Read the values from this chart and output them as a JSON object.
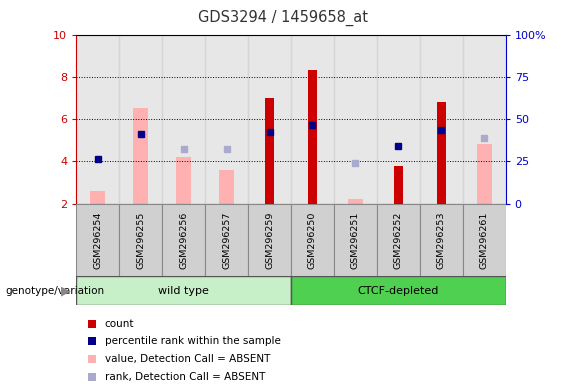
{
  "title": "GDS3294 / 1459658_at",
  "samples": [
    "GSM296254",
    "GSM296255",
    "GSM296256",
    "GSM296257",
    "GSM296259",
    "GSM296250",
    "GSM296251",
    "GSM296252",
    "GSM296253",
    "GSM296261"
  ],
  "groups": [
    "wild type",
    "wild type",
    "wild type",
    "wild type",
    "wild type",
    "CTCF-depleted",
    "CTCF-depleted",
    "CTCF-depleted",
    "CTCF-depleted",
    "CTCF-depleted"
  ],
  "count": [
    null,
    null,
    null,
    null,
    7.0,
    8.3,
    null,
    3.8,
    6.8,
    null
  ],
  "value_absent": [
    2.6,
    6.5,
    4.2,
    3.6,
    null,
    null,
    2.2,
    null,
    null,
    4.8
  ],
  "percentile_rank": [
    4.1,
    5.3,
    null,
    null,
    5.4,
    5.7,
    null,
    4.7,
    5.5,
    null
  ],
  "rank_absent": [
    null,
    null,
    4.6,
    4.6,
    null,
    null,
    3.9,
    null,
    null,
    5.1
  ],
  "ylim": [
    2,
    10
  ],
  "yticks": [
    2,
    4,
    6,
    8,
    10
  ],
  "right_yticks_vals": [
    0,
    25,
    50,
    75,
    100
  ],
  "right_ytick_labels": [
    "0",
    "25",
    "50",
    "75",
    "100%"
  ],
  "left_axis_color": "#cc0000",
  "right_axis_color": "#0000cc",
  "wt_color_light": "#c8f0c8",
  "wt_color": "#90e890",
  "ctcf_color": "#50d050",
  "col_bg_color": "#d0d0d0",
  "legend": [
    {
      "label": "count",
      "color": "#cc0000"
    },
    {
      "label": "percentile rank within the sample",
      "color": "#00008b"
    },
    {
      "label": "value, Detection Call = ABSENT",
      "color": "#ffb0b0"
    },
    {
      "label": "rank, Detection Call = ABSENT",
      "color": "#aaaacc"
    }
  ]
}
